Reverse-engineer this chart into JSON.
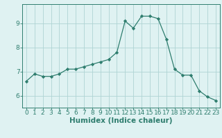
{
  "x": [
    0,
    1,
    2,
    3,
    4,
    5,
    6,
    7,
    8,
    9,
    10,
    11,
    12,
    13,
    14,
    15,
    16,
    17,
    18,
    19,
    20,
    21,
    22,
    23
  ],
  "y": [
    6.6,
    6.9,
    6.8,
    6.8,
    6.9,
    7.1,
    7.1,
    7.2,
    7.3,
    7.4,
    7.5,
    7.8,
    9.1,
    8.8,
    9.3,
    9.3,
    9.2,
    8.35,
    7.1,
    6.85,
    6.85,
    6.2,
    5.95,
    5.8
  ],
  "line_color": "#2e7d6e",
  "marker": "D",
  "marker_size": 2.2,
  "bg_color": "#dff2f2",
  "grid_color": "#aed4d4",
  "xlabel": "Humidex (Indice chaleur)",
  "xlim": [
    -0.5,
    23.5
  ],
  "ylim": [
    5.5,
    9.8
  ],
  "yticks": [
    6,
    7,
    8,
    9
  ],
  "xtick_labels": [
    "0",
    "1",
    "2",
    "3",
    "4",
    "5",
    "6",
    "7",
    "8",
    "9",
    "10",
    "11",
    "12",
    "13",
    "14",
    "15",
    "16",
    "17",
    "18",
    "19",
    "20",
    "21",
    "22",
    "23"
  ],
  "xlabel_fontsize": 7.5,
  "tick_fontsize": 6.5,
  "axis_color": "#2e7d6e"
}
